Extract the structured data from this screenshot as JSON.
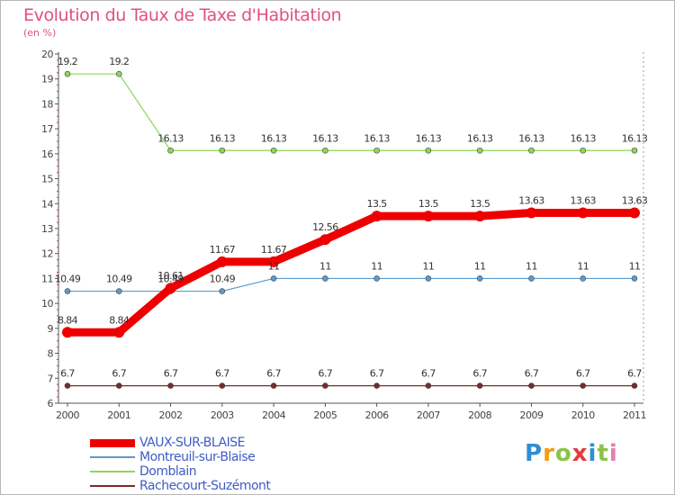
{
  "title": "Evolution du Taux de Taxe d'Habitation",
  "subtitle": "(en %)",
  "logo": {
    "letters": [
      "P",
      "r",
      "o",
      "x",
      "i",
      "t",
      "i"
    ],
    "colors": [
      "#2f8fd0",
      "#f39c12",
      "#8bc34a",
      "#e5393b",
      "#2f8fd0",
      "#8bc34a",
      "#e57fb0"
    ]
  },
  "chart_data": {
    "type": "line",
    "title": "Evolution du Taux de Taxe d'Habitation",
    "ylabel": "(en %)",
    "xlabel": "",
    "x": [
      "2000",
      "2001",
      "2002",
      "2003",
      "2004",
      "2005",
      "2006",
      "2007",
      "2008",
      "2009",
      "2010",
      "2011"
    ],
    "yticks": [
      "6",
      "7",
      "8",
      "9",
      "10",
      "11",
      "12",
      "13",
      "14",
      "15",
      "16",
      "17",
      "18",
      "19",
      "20"
    ],
    "ylim": [
      6,
      20
    ],
    "grid": false,
    "legend_position": "bottom-left",
    "series": [
      {
        "name": "VAUX-SUR-BLAISE",
        "color": "#ee0000",
        "values": [
          8.84,
          8.84,
          10.61,
          11.67,
          11.67,
          12.56,
          13.5,
          13.5,
          13.5,
          13.63,
          13.63,
          13.63
        ],
        "labels": [
          "8.84",
          "8.84",
          "10.61",
          "11.67",
          "11.67",
          "12.56",
          "13.5",
          "13.5",
          "13.5",
          "13.63",
          "13.63",
          "13.63"
        ]
      },
      {
        "name": "Montreuil-sur-Blaise",
        "color": "#5a9bd0",
        "values": [
          10.49,
          10.49,
          10.49,
          10.49,
          11,
          11,
          11,
          11,
          11,
          11,
          11,
          11
        ],
        "labels": [
          "10.49",
          "10.49",
          "10.49",
          "10.49",
          "11",
          "11",
          "11",
          "11",
          "11",
          "11",
          "11",
          "11"
        ]
      },
      {
        "name": "Domblain",
        "color": "#8fd45a",
        "values": [
          19.2,
          19.2,
          16.13,
          16.13,
          16.13,
          16.13,
          16.13,
          16.13,
          16.13,
          16.13,
          16.13,
          16.13
        ],
        "labels": [
          "19.2",
          "19.2",
          "16.13",
          "16.13",
          "16.13",
          "16.13",
          "16.13",
          "16.13",
          "16.13",
          "16.13",
          "16.13",
          "16.13"
        ]
      },
      {
        "name": "Rachecourt-Suzémont",
        "color": "#7a2a2a",
        "values": [
          6.7,
          6.7,
          6.7,
          6.7,
          6.7,
          6.7,
          6.7,
          6.7,
          6.7,
          6.7,
          6.7,
          6.7
        ],
        "labels": [
          "6.7",
          "6.7",
          "6.7",
          "6.7",
          "6.7",
          "6.7",
          "6.7",
          "6.7",
          "6.7",
          "6.7",
          "6.7",
          "6.7"
        ]
      }
    ]
  }
}
